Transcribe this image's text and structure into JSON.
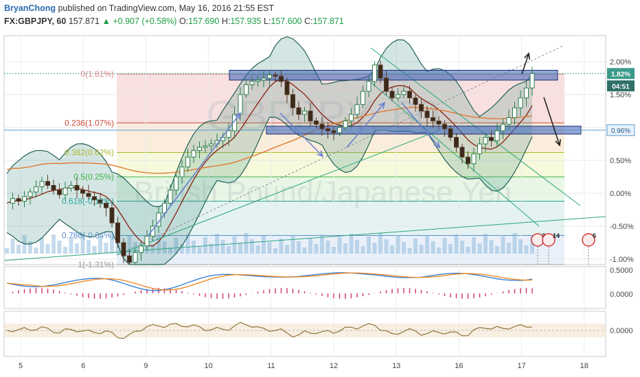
{
  "header": {
    "publisher": "BryanChong",
    "published_text": "published on TradingView.com, May 16, 2016 21:55 EST",
    "symbol": "FX:GBPJPY, 60",
    "last": "157.871",
    "change": "+0.907 (+0.58%)",
    "open_label": "O:",
    "open": "157.690",
    "high_label": "H:",
    "high": "157.935",
    "low_label": "L:",
    "low": "157.600",
    "close_label": "C:",
    "close": "157.871"
  },
  "watermark": {
    "symbol": "GBPJPY, 60",
    "name": "British Pound/Japanese Yen"
  },
  "colors": {
    "up": "#1c9c44",
    "candle_up": "#2a7d4a",
    "fib_top": "#e8a0a0",
    "zone": "#3b5cb8",
    "macd": "#3a7fd5",
    "signal": "#f08a24"
  },
  "chart_data": {
    "type": "line",
    "x_labels": [
      "5",
      "6",
      "9",
      "10",
      "11",
      "12",
      "13",
      "16",
      "17",
      "18"
    ],
    "y_ticks": [
      "2.00%",
      "1.50%",
      "1.00%",
      "0.50%",
      "0.00%",
      "-0.50%",
      "-1.00%"
    ],
    "y_range_pct": [
      -1.0,
      2.2
    ],
    "price_badges": [
      "1.82%",
      "04:51",
      "0.96%"
    ],
    "fib_levels": [
      {
        "label": "0(1.81%)",
        "pct": 1.81
      },
      {
        "label": "0.236(1.07%)",
        "pct": 1.07
      },
      {
        "label": "0.382(0.62%)",
        "pct": 0.62
      },
      {
        "label": "0.5(0.25%)",
        "pct": 0.25
      },
      {
        "label": "0.618(-0.12%)",
        "pct": -0.12
      },
      {
        "label": "0.786(-0.64%)",
        "pct": -0.64
      },
      {
        "label": "1(-1.31%)",
        "pct": -1.31
      }
    ],
    "resistance_zone_pct": [
      1.72,
      1.87
    ],
    "support_zone_pct": [
      0.9,
      1.02
    ],
    "price_series_pct": [
      -0.15,
      -0.08,
      -0.12,
      -0.05,
      0.02,
      0.1,
      0.18,
      0.12,
      0.05,
      -0.02,
      0.08,
      0.12,
      0.05,
      0.0,
      -0.05,
      -0.1,
      -0.15,
      -0.22,
      -0.45,
      -0.75,
      -0.95,
      -1.05,
      -0.9,
      -0.8,
      -0.65,
      -0.5,
      -0.3,
      -0.15,
      0.05,
      0.25,
      0.4,
      0.55,
      0.65,
      0.7,
      0.72,
      0.75,
      0.8,
      0.85,
      0.95,
      1.2,
      1.5,
      1.65,
      1.7,
      1.72,
      1.75,
      1.8,
      1.78,
      1.7,
      1.5,
      1.3,
      1.2,
      1.25,
      1.1,
      1.05,
      0.98,
      0.95,
      0.92,
      1.0,
      1.1,
      1.2,
      1.35,
      1.55,
      1.7,
      1.95,
      1.75,
      1.55,
      1.45,
      1.5,
      1.55,
      1.45,
      1.35,
      1.25,
      1.15,
      1.1,
      1.05,
      0.98,
      0.85,
      0.7,
      0.55,
      0.45,
      0.6,
      0.75,
      0.85,
      0.8,
      0.95,
      1.05,
      1.15,
      1.3,
      1.45,
      1.6,
      1.82
    ],
    "oscillators": [
      {
        "name": "MACD",
        "ticks": [
          "0.5000",
          "0.0000"
        ]
      },
      {
        "name": "Momentum",
        "ticks": [
          "0.0000"
        ]
      }
    ],
    "event_markers": [
      "3",
      "14",
      "6"
    ]
  }
}
